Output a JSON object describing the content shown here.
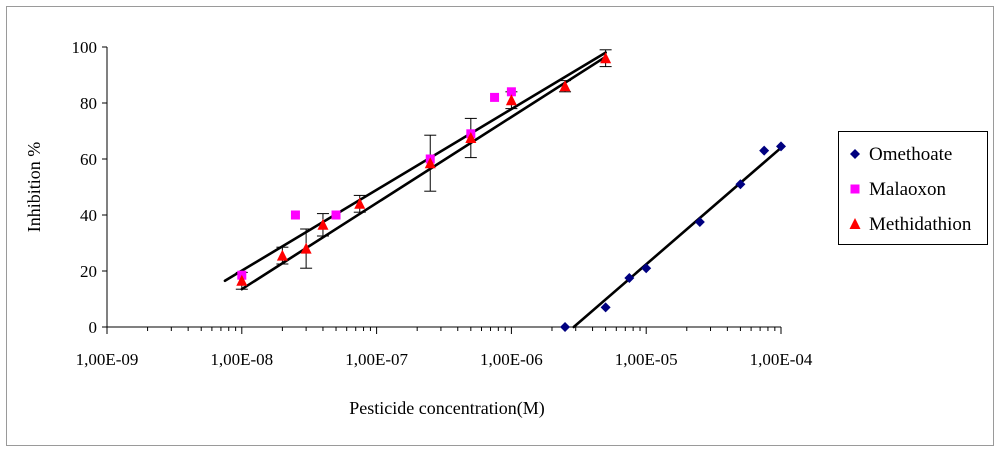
{
  "chart_data": {
    "type": "scatter",
    "title": "",
    "xlabel": "Pesticide concentration(M)",
    "ylabel": "Inhibition %",
    "x_scale": "log",
    "xlim": [
      1e-09,
      0.0001
    ],
    "ylim": [
      0,
      100
    ],
    "x_ticks": [
      {
        "value": 1e-09,
        "label": "1,00E-09"
      },
      {
        "value": 1e-08,
        "label": "1,00E-08"
      },
      {
        "value": 1e-07,
        "label": "1,00E-07"
      },
      {
        "value": 1e-06,
        "label": "1,00E-06"
      },
      {
        "value": 1e-05,
        "label": "1,00E-05"
      },
      {
        "value": 0.0001,
        "label": "1,00E-04"
      }
    ],
    "y_ticks": [
      {
        "value": 0,
        "label": "0"
      },
      {
        "value": 20,
        "label": "20"
      },
      {
        "value": 40,
        "label": "40"
      },
      {
        "value": 60,
        "label": "60"
      },
      {
        "value": 80,
        "label": "80"
      },
      {
        "value": 100,
        "label": "100"
      }
    ],
    "legend_position": "right",
    "series": [
      {
        "name": "Omethoate",
        "marker": "diamond",
        "color": "#000080",
        "points": [
          {
            "x": 2.5e-06,
            "y": 0
          },
          {
            "x": 5e-06,
            "y": 7
          },
          {
            "x": 7.5e-06,
            "y": 17.5
          },
          {
            "x": 1e-05,
            "y": 21
          },
          {
            "x": 2.5e-05,
            "y": 37.5
          },
          {
            "x": 5e-05,
            "y": 51
          },
          {
            "x": 7.5e-05,
            "y": 63
          },
          {
            "x": 0.0001,
            "y": 64.5
          }
        ]
      },
      {
        "name": "Malaoxon",
        "marker": "square",
        "color": "#ff00ff",
        "points": [
          {
            "x": 1e-08,
            "y": 18.5
          },
          {
            "x": 2.5e-08,
            "y": 40
          },
          {
            "x": 5e-08,
            "y": 40
          },
          {
            "x": 2.5e-07,
            "y": 60
          },
          {
            "x": 5e-07,
            "y": 69
          },
          {
            "x": 7.5e-07,
            "y": 82
          },
          {
            "x": 1e-06,
            "y": 84
          }
        ]
      },
      {
        "name": "Methidathion",
        "marker": "triangle",
        "color": "#ff0000",
        "points": [
          {
            "x": 1e-08,
            "y": 16.5,
            "err": 3
          },
          {
            "x": 2e-08,
            "y": 25.5,
            "err": 3
          },
          {
            "x": 3e-08,
            "y": 28,
            "err": 7
          },
          {
            "x": 4e-08,
            "y": 36.5,
            "err": 4
          },
          {
            "x": 7.5e-08,
            "y": 44,
            "err": 3
          },
          {
            "x": 2.5e-07,
            "y": 58.5,
            "err": 10
          },
          {
            "x": 5e-07,
            "y": 67.5,
            "err": 7
          },
          {
            "x": 1e-06,
            "y": 81,
            "err": 3
          },
          {
            "x": 2.5e-06,
            "y": 86,
            "err": 2
          },
          {
            "x": 5e-06,
            "y": 96,
            "err": 3
          }
        ]
      }
    ],
    "trendlines": [
      {
        "name": "omethoate-fit",
        "from": {
          "x": 2.9e-06,
          "y": 0
        },
        "to": {
          "x": 0.0001,
          "y": 64
        }
      },
      {
        "name": "malaoxon-fit",
        "from": {
          "x": 7.5e-09,
          "y": 16.5
        },
        "to": {
          "x": 5e-06,
          "y": 98
        }
      },
      {
        "name": "methidathion-fit",
        "from": {
          "x": 1e-08,
          "y": 13.5
        },
        "to": {
          "x": 5e-06,
          "y": 96.5
        }
      }
    ]
  }
}
